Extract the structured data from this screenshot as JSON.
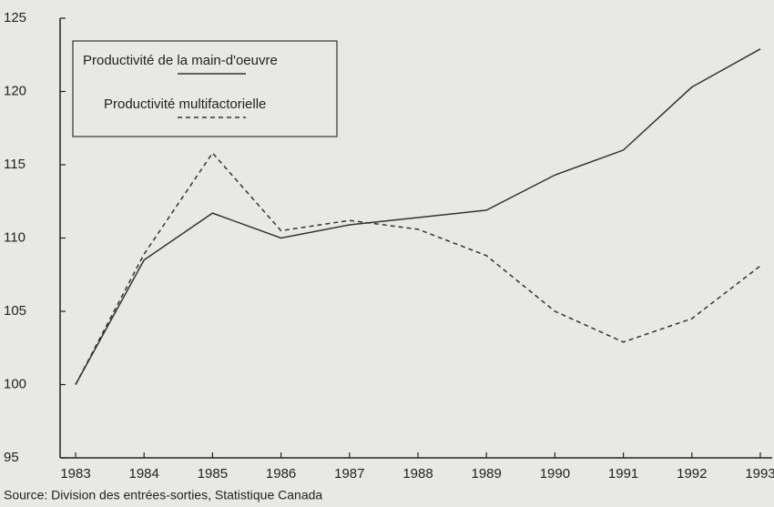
{
  "chart_data": {
    "type": "line",
    "categories": [
      "1983",
      "1984",
      "1985",
      "1986",
      "1987",
      "1988",
      "1989",
      "1990",
      "1991",
      "1992",
      "1993"
    ],
    "series": [
      {
        "name": "Productivité de la main-d'oeuvre",
        "color": "#333333",
        "dash": "solid",
        "values": [
          100,
          108.5,
          111.7,
          110,
          110.9,
          111.4,
          111.9,
          114.3,
          116,
          120.3,
          122.9
        ]
      },
      {
        "name": "Productivité multifactorielle",
        "color": "#333333",
        "dash": "dashed",
        "values": [
          100,
          108.9,
          115.8,
          110.5,
          111.2,
          110.6,
          108.8,
          105,
          102.9,
          104.5,
          108.1
        ]
      }
    ],
    "ylim": [
      95,
      125
    ],
    "yticks": [
      95,
      100,
      105,
      110,
      115,
      120,
      125
    ],
    "source": "Source:  Division des entrées-sorties, Statistique Canada"
  }
}
